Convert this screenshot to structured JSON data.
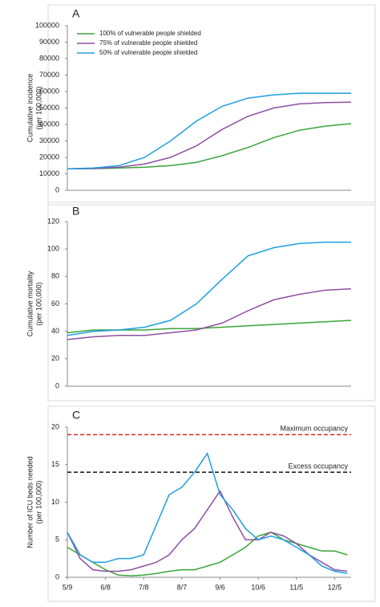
{
  "chart_data": [
    {
      "type": "line",
      "panel_label": "A",
      "ylabel": [
        "Cumulative incidence",
        "(per 100,000)"
      ],
      "ylim": [
        0,
        100000
      ],
      "yticks": [
        0,
        10000,
        20000,
        30000,
        40000,
        50000,
        60000,
        70000,
        80000,
        90000,
        100000
      ],
      "legend": "upper left",
      "series": [
        {
          "name": "100% of vulnerable people shielded",
          "color": "#3aa53a",
          "values": [
            13000,
            13100,
            13500,
            14000,
            15000,
            17000,
            21000,
            26000,
            32000,
            36500,
            39000,
            40500
          ]
        },
        {
          "name": "75% of vulnerable people shielded",
          "color": "#8e50a2",
          "values": [
            13000,
            13200,
            14000,
            16000,
            20000,
            27000,
            37000,
            45000,
            50000,
            52500,
            53300,
            53500
          ]
        },
        {
          "name": "50% of vulnerable people shielded",
          "color": "#1e9fe0",
          "values": [
            13000,
            13500,
            15000,
            20000,
            30000,
            42000,
            51000,
            56000,
            58000,
            59000,
            59000,
            59000
          ]
        }
      ]
    },
    {
      "type": "line",
      "panel_label": "B",
      "ylabel": [
        "Cumulative mortality",
        "(per 100,000)"
      ],
      "ylim": [
        0,
        120
      ],
      "yticks": [
        0,
        20,
        40,
        60,
        80,
        100,
        120
      ],
      "series": [
        {
          "color": "#3aa53a",
          "values": [
            39,
            41,
            41,
            41,
            42,
            42,
            43,
            44,
            45,
            46,
            47,
            48
          ]
        },
        {
          "color": "#8e50a2",
          "values": [
            34,
            36,
            37,
            37,
            39,
            41,
            46,
            55,
            63,
            67,
            70,
            71
          ]
        },
        {
          "color": "#1e9fe0",
          "values": [
            37,
            40,
            41,
            43,
            48,
            60,
            78,
            95,
            101,
            104,
            105,
            105
          ]
        }
      ]
    },
    {
      "type": "line",
      "panel_label": "C",
      "ylabel": [
        "Number of ICU beds needed",
        "(per 100,000)"
      ],
      "xlim": [
        0,
        223
      ],
      "xticks": [
        {
          "value": 0,
          "label": "5/9"
        },
        {
          "value": 30,
          "label": "6/8"
        },
        {
          "value": 60,
          "label": "7/8"
        },
        {
          "value": 90,
          "label": "8/7"
        },
        {
          "value": 120,
          "label": "9/6"
        },
        {
          "value": 150,
          "label": "10/6"
        },
        {
          "value": 180,
          "label": "11/5"
        },
        {
          "value": 210,
          "label": "12/5"
        }
      ],
      "ylim": [
        0,
        20
      ],
      "yticks": [
        0,
        5,
        10,
        15,
        20
      ],
      "x": [
        0,
        10,
        20,
        30,
        40,
        50,
        60,
        70,
        80,
        90,
        100,
        110,
        120,
        130,
        140,
        150,
        160,
        170,
        180,
        190,
        200,
        210,
        220
      ],
      "hlines": [
        {
          "value": 19,
          "label": "Maximum occupancy",
          "color": "#e02424"
        },
        {
          "value": 14,
          "label": "Excess occupancy",
          "color": "#111111"
        }
      ],
      "series": [
        {
          "color": "#3aa53a",
          "values": [
            4,
            3,
            2,
            1,
            0.3,
            0.2,
            0.3,
            0.5,
            0.8,
            1,
            1,
            1.5,
            2,
            3,
            4,
            5.5,
            6,
            5,
            4.5,
            4,
            3.5,
            3.5,
            3
          ]
        },
        {
          "color": "#8e50a2",
          "values": [
            6,
            2.5,
            1,
            0.8,
            0.8,
            1,
            1.5,
            2,
            3,
            5,
            6.5,
            9,
            11.5,
            8,
            5,
            5,
            6,
            5.5,
            4.5,
            3,
            2,
            1,
            0.8
          ]
        },
        {
          "color": "#1e9fe0",
          "values": [
            6,
            3,
            2,
            2,
            2.5,
            2.5,
            3,
            7,
            11,
            12,
            14,
            16.5,
            11,
            9,
            6.5,
            5,
            5.5,
            5,
            4,
            3,
            1.5,
            0.8,
            0.5
          ]
        }
      ]
    }
  ]
}
